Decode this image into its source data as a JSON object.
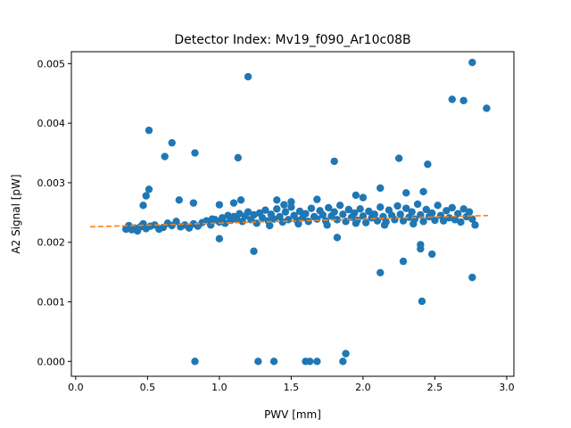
{
  "chart_data": {
    "type": "scatter",
    "title": "Detector Index: Mv19_f090_Ar10c08B",
    "xlabel": "PWV [mm]",
    "ylabel": "A2 Signal [pW]",
    "xlim": [
      -0.03,
      3.05
    ],
    "ylim": [
      -0.00025,
      0.0052
    ],
    "xticks": [
      0.0,
      0.5,
      1.0,
      1.5,
      2.0,
      2.5,
      3.0
    ],
    "xtick_labels": [
      "0.0",
      "0.5",
      "1.0",
      "1.5",
      "2.0",
      "2.5",
      "3.0"
    ],
    "yticks": [
      0.0,
      0.001,
      0.002,
      0.003,
      0.004,
      0.005
    ],
    "ytick_labels": [
      "0.000",
      "0.001",
      "0.002",
      "0.003",
      "0.004",
      "0.005"
    ],
    "colors": {
      "points": "#1f77b4",
      "fit": "#ff7f0e"
    },
    "series": [
      {
        "name": "measurements",
        "style": "scatter",
        "points": [
          [
            0.35,
            0.00222
          ],
          [
            0.37,
            0.00228
          ],
          [
            0.39,
            0.00221
          ],
          [
            0.41,
            0.00224
          ],
          [
            0.43,
            0.00219
          ],
          [
            0.45,
            0.00226
          ],
          [
            0.47,
            0.00231
          ],
          [
            0.49,
            0.00223
          ],
          [
            0.52,
            0.00227
          ],
          [
            0.55,
            0.00229
          ],
          [
            0.58,
            0.00222
          ],
          [
            0.61,
            0.00225
          ],
          [
            0.64,
            0.00232
          ],
          [
            0.67,
            0.00228
          ],
          [
            0.7,
            0.00235
          ],
          [
            0.73,
            0.00226
          ],
          [
            0.76,
            0.00229
          ],
          [
            0.79,
            0.00224
          ],
          [
            0.82,
            0.00231
          ],
          [
            0.85,
            0.00227
          ],
          [
            0.88,
            0.00233
          ],
          [
            0.91,
            0.00236
          ],
          [
            0.94,
            0.00229
          ],
          [
            0.97,
            0.00238
          ],
          [
            1.0,
            0.00234
          ],
          [
            1.02,
            0.00241
          ],
          [
            1.04,
            0.00232
          ],
          [
            1.06,
            0.00245
          ],
          [
            1.08,
            0.00237
          ],
          [
            1.1,
            0.00243
          ],
          [
            1.12,
            0.00239
          ],
          [
            1.14,
            0.00248
          ],
          [
            1.16,
            0.00235
          ],
          [
            1.18,
            0.00244
          ],
          [
            1.2,
            0.00251
          ],
          [
            1.22,
            0.00238
          ],
          [
            1.24,
            0.00246
          ],
          [
            1.26,
            0.00232
          ],
          [
            1.28,
            0.00249
          ],
          [
            1.3,
            0.00241
          ],
          [
            1.32,
            0.00254
          ],
          [
            1.34,
            0.00236
          ],
          [
            1.36,
            0.00247
          ],
          [
            1.38,
            0.00239
          ],
          [
            1.4,
            0.00256
          ],
          [
            1.42,
            0.00243
          ],
          [
            1.44,
            0.00234
          ],
          [
            1.46,
            0.00251
          ],
          [
            1.48,
            0.00238
          ],
          [
            1.5,
            0.00259
          ],
          [
            1.52,
            0.00245
          ],
          [
            1.54,
            0.00237
          ],
          [
            1.56,
            0.00252
          ],
          [
            1.58,
            0.00241
          ],
          [
            1.6,
            0.00248
          ],
          [
            1.62,
            0.00235
          ],
          [
            1.64,
            0.00257
          ],
          [
            1.66,
            0.00243
          ],
          [
            1.68,
            0.00239
          ],
          [
            1.7,
            0.00253
          ],
          [
            1.72,
            0.00246
          ],
          [
            1.74,
            0.00236
          ],
          [
            1.76,
            0.00258
          ],
          [
            1.78,
            0.00244
          ],
          [
            1.8,
            0.00251
          ],
          [
            1.82,
            0.00238
          ],
          [
            1.84,
            0.00262
          ],
          [
            1.86,
            0.00247
          ],
          [
            1.88,
            0.00235
          ],
          [
            1.9,
            0.00255
          ],
          [
            1.92,
            0.00242
          ],
          [
            1.94,
            0.00249
          ],
          [
            1.96,
            0.00237
          ],
          [
            1.98,
            0.00256
          ],
          [
            2.0,
            0.00244
          ],
          [
            2.02,
            0.00233
          ],
          [
            2.04,
            0.00252
          ],
          [
            2.06,
            0.00241
          ],
          [
            2.08,
            0.00247
          ],
          [
            2.1,
            0.00236
          ],
          [
            2.12,
            0.00259
          ],
          [
            2.14,
            0.00243
          ],
          [
            2.16,
            0.00234
          ],
          [
            2.18,
            0.00254
          ],
          [
            2.2,
            0.00245
          ],
          [
            2.22,
            0.00238
          ],
          [
            2.24,
            0.00261
          ],
          [
            2.26,
            0.00247
          ],
          [
            2.28,
            0.00236
          ],
          [
            2.3,
            0.00257
          ],
          [
            2.32,
            0.00242
          ],
          [
            2.34,
            0.00251
          ],
          [
            2.36,
            0.00239
          ],
          [
            2.38,
            0.00264
          ],
          [
            2.4,
            0.00246
          ],
          [
            2.42,
            0.00235
          ],
          [
            2.44,
            0.00255
          ],
          [
            2.46,
            0.00243
          ],
          [
            2.48,
            0.00249
          ],
          [
            2.5,
            0.00237
          ],
          [
            2.52,
            0.00262
          ],
          [
            2.54,
            0.00245
          ],
          [
            2.56,
            0.00236
          ],
          [
            2.58,
            0.00253
          ],
          [
            2.6,
            0.00241
          ],
          [
            2.62,
            0.00258
          ],
          [
            2.64,
            0.00238
          ],
          [
            2.66,
            0.00248
          ],
          [
            2.68,
            0.00234
          ],
          [
            2.7,
            0.00256
          ],
          [
            2.72,
            0.00243
          ],
          [
            2.74,
            0.00251
          ],
          [
            2.76,
            0.00239
          ],
          [
            2.78,
            0.00229
          ],
          [
            1.35,
            0.00228
          ],
          [
            1.55,
            0.00231
          ],
          [
            1.75,
            0.00229
          ],
          [
            1.95,
            0.00232
          ],
          [
            2.15,
            0.00229
          ],
          [
            2.35,
            0.00231
          ],
          [
            0.47,
            0.00262
          ],
          [
            0.49,
            0.00278
          ],
          [
            0.51,
            0.00289
          ],
          [
            0.51,
            0.00388
          ],
          [
            0.62,
            0.00344
          ],
          [
            0.67,
            0.00367
          ],
          [
            0.72,
            0.00271
          ],
          [
            0.82,
            0.00266
          ],
          [
            0.83,
            0.0035
          ],
          [
            0.83,
            0.0
          ],
          [
            0.95,
            0.00239
          ],
          [
            1.0,
            0.00206
          ],
          [
            1.0,
            0.00263
          ],
          [
            1.1,
            0.00266
          ],
          [
            1.13,
            0.00342
          ],
          [
            1.15,
            0.00271
          ],
          [
            1.2,
            0.00478
          ],
          [
            1.24,
            0.00185
          ],
          [
            1.27,
            0.0
          ],
          [
            1.38,
            0.0
          ],
          [
            1.4,
            0.00271
          ],
          [
            1.6,
            0.0
          ],
          [
            1.63,
            0.0
          ],
          [
            1.68,
            0.0
          ],
          [
            1.68,
            0.00272
          ],
          [
            1.8,
            0.00336
          ],
          [
            1.82,
            0.00208
          ],
          [
            1.86,
            0.0
          ],
          [
            1.88,
            0.00013
          ],
          [
            1.95,
            0.00279
          ],
          [
            2.12,
            0.00291
          ],
          [
            2.12,
            0.00149
          ],
          [
            2.25,
            0.00341
          ],
          [
            2.28,
            0.00168
          ],
          [
            2.4,
            0.00196
          ],
          [
            2.4,
            0.00189
          ],
          [
            2.41,
            0.00101
          ],
          [
            2.45,
            0.00331
          ],
          [
            2.48,
            0.0018
          ],
          [
            2.62,
            0.0044
          ],
          [
            2.7,
            0.00438
          ],
          [
            2.76,
            0.00502
          ],
          [
            2.76,
            0.00141
          ],
          [
            2.86,
            0.00425
          ],
          [
            2.42,
            0.00285
          ],
          [
            2.3,
            0.00283
          ],
          [
            2.0,
            0.00275
          ],
          [
            1.5,
            0.00268
          ],
          [
            1.45,
            0.00263
          ]
        ]
      },
      {
        "name": "linear fit",
        "style": "dashed-line",
        "points": [
          [
            0.1,
            0.00226
          ],
          [
            2.87,
            0.00245
          ]
        ]
      }
    ]
  }
}
